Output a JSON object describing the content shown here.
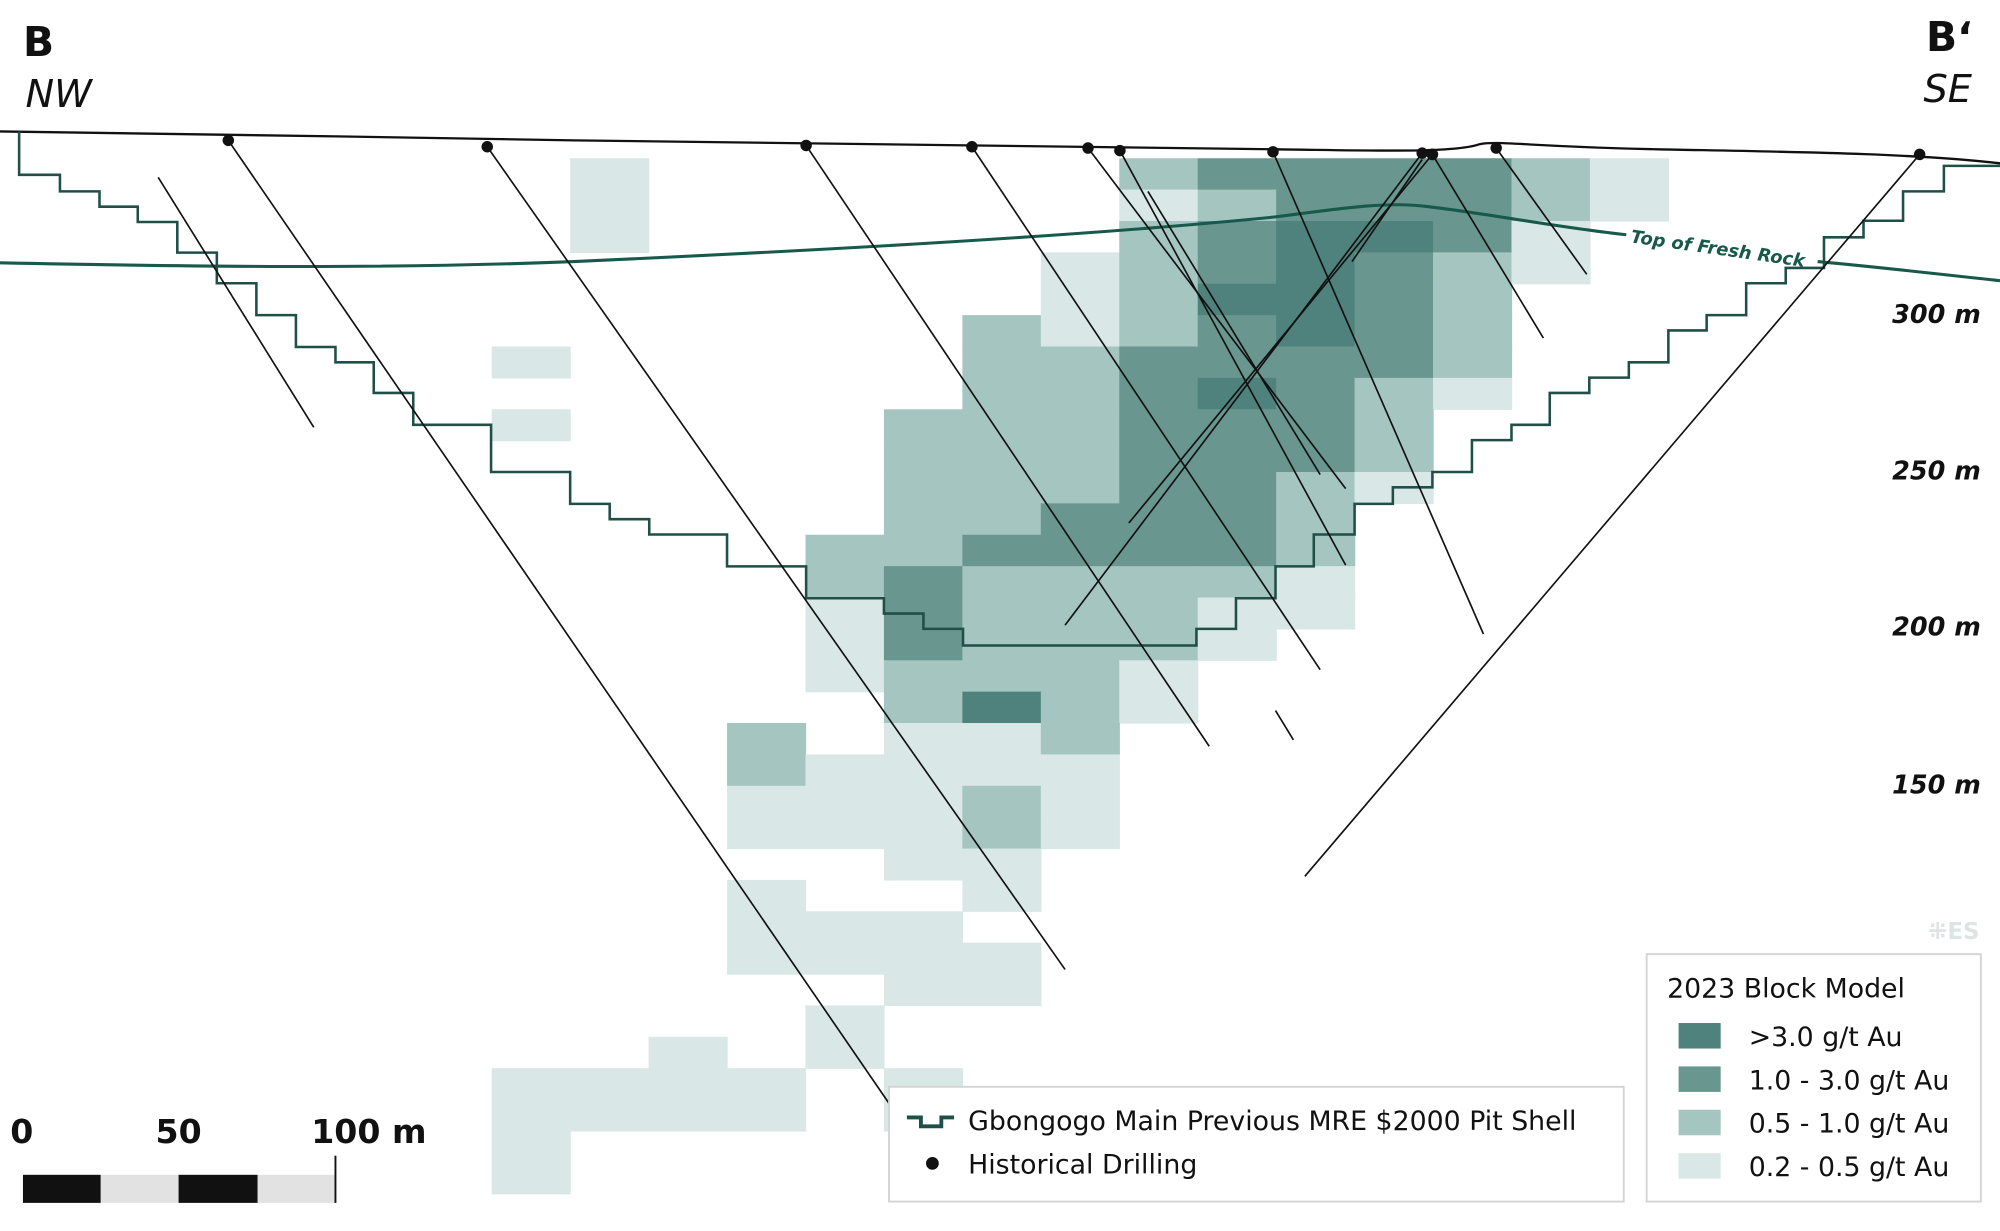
{
  "section": {
    "left_label": "B",
    "left_direction": "NW",
    "right_label": "B‘",
    "right_direction": "SE"
  },
  "fresh_rock_label": "Top of Fresh Rock",
  "elevation_labels": [
    "300 m",
    "250 m",
    "200 m",
    "150 m"
  ],
  "scale_bar": {
    "ticks": [
      "0",
      "50",
      "100 m"
    ]
  },
  "watermark": "⁜ES",
  "legend_lines": {
    "pit_shell": "Gbongogo Main Previous MRE $2000 Pit Shell",
    "drilling": "Historical Drilling"
  },
  "block_legend": {
    "title": "2023 Block Model",
    "items": [
      {
        "label": ">3.0 g/t Au",
        "color": "#4f827c"
      },
      {
        "label": "1.0 - 3.0 g/t Au",
        "color": "#69978f"
      },
      {
        "label": "0.5 - 1.0 g/t Au",
        "color": "#a5c5c0"
      },
      {
        "label": "0.2 - 0.5 g/t Au",
        "color": "#d9e8e6"
      }
    ]
  },
  "colors": {
    "pit_shell": "#1f4f47",
    "fresh_rock": "#17594b",
    "drill": "#111111"
  }
}
